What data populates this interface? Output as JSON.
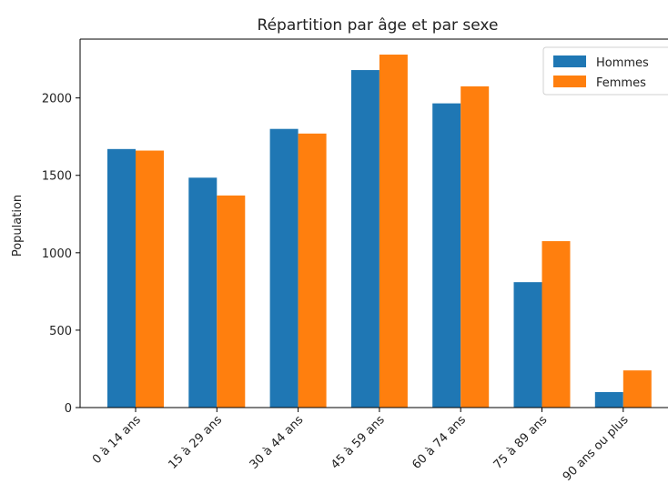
{
  "chart_data": {
    "type": "bar",
    "title": "Répartition par âge et par sexe",
    "xlabel": "",
    "ylabel": "Population",
    "categories": [
      "0 à 14 ans",
      "15 à 29 ans",
      "30 à 44 ans",
      "45 à 59 ans",
      "60 à 74 ans",
      "75 à 89 ans",
      "90 ans ou plus"
    ],
    "series": [
      {
        "name": "Hommes",
        "color": "#1f77b4",
        "values": [
          1670,
          1485,
          1800,
          2180,
          1965,
          810,
          100
        ]
      },
      {
        "name": "Femmes",
        "color": "#ff7f0e",
        "values": [
          1660,
          1370,
          1770,
          2280,
          2075,
          1075,
          240
        ]
      }
    ],
    "yticks": [
      0,
      500,
      1000,
      1500,
      2000
    ],
    "ylim": [
      0,
      2380
    ],
    "grid": false,
    "legend": "top-right"
  }
}
